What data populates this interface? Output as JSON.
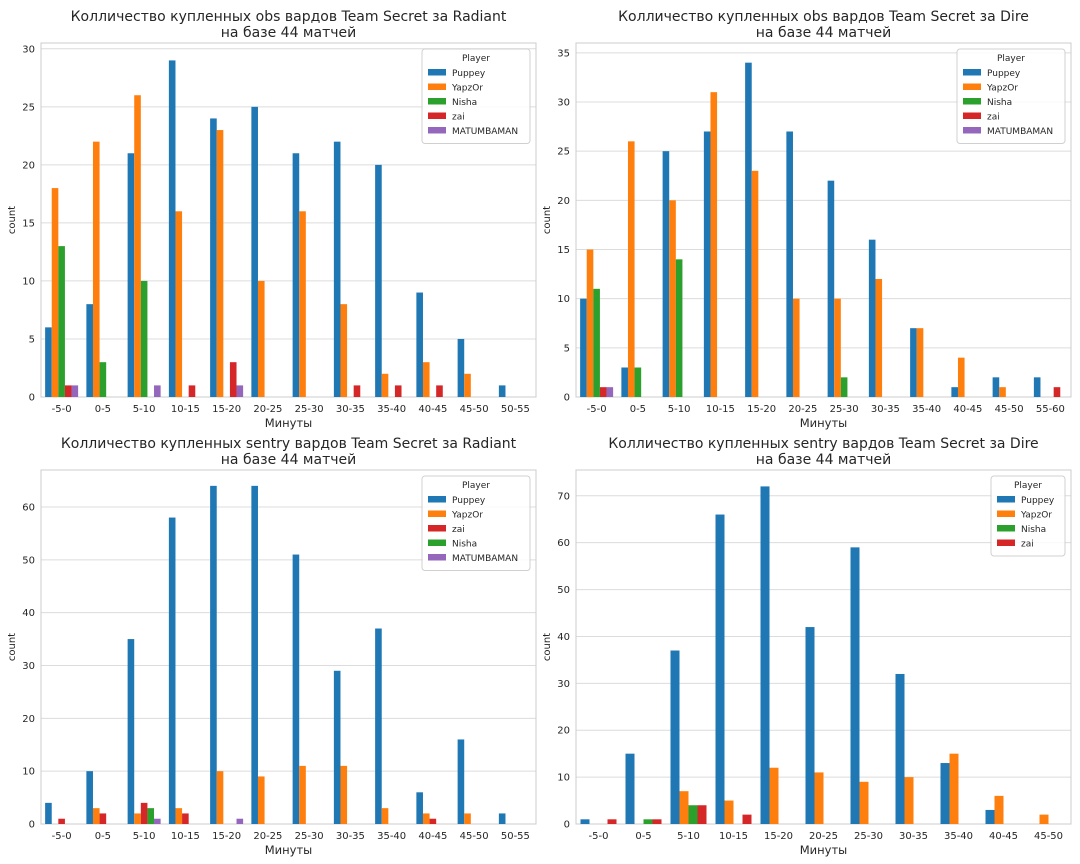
{
  "palette": {
    "Puppey": "#1f77b4",
    "YapzOr": "#ff7f0e",
    "Nisha": "#2ca02c",
    "zai": "#d62728",
    "MATUMBAMAN": "#9467bd"
  },
  "chart_data": [
    {
      "type": "bar",
      "title": "Колличество купленных obs вардов Team Secret за Radiant",
      "subtitle": "на базе 44 матчей",
      "xlabel": "Минуты",
      "ylabel": "count",
      "ylim": [
        0,
        30.5
      ],
      "yticks": [
        0,
        5,
        10,
        15,
        20,
        25,
        30
      ],
      "grid": true,
      "legend_title": "Player",
      "legend_position": "top-right",
      "categories": [
        "-5-0",
        "0-5",
        "5-10",
        "10-15",
        "15-20",
        "20-25",
        "25-30",
        "30-35",
        "35-40",
        "40-45",
        "45-50",
        "50-55"
      ],
      "series": [
        {
          "name": "Puppey",
          "values": [
            6,
            8,
            21,
            29,
            24,
            25,
            21,
            22,
            20,
            9,
            5,
            1
          ]
        },
        {
          "name": "YapzOr",
          "values": [
            18,
            22,
            26,
            16,
            23,
            10,
            16,
            8,
            2,
            3,
            2,
            0
          ]
        },
        {
          "name": "Nisha",
          "values": [
            13,
            3,
            10,
            0,
            0,
            0,
            0,
            0,
            0,
            0,
            0,
            0
          ]
        },
        {
          "name": "zai",
          "values": [
            1,
            0,
            0,
            1,
            3,
            0,
            0,
            1,
            1,
            1,
            0,
            0
          ]
        },
        {
          "name": "MATUMBAMAN",
          "values": [
            1,
            0,
            1,
            0,
            1,
            0,
            0,
            0,
            0,
            0,
            0,
            0
          ]
        }
      ]
    },
    {
      "type": "bar",
      "title": "Колличество купленных obs вардов Team Secret за Dire",
      "subtitle": "на базе 44 матчей",
      "xlabel": "Минуты",
      "ylabel": "count",
      "ylim": [
        0,
        36
      ],
      "yticks": [
        0,
        5,
        10,
        15,
        20,
        25,
        30,
        35
      ],
      "grid": true,
      "legend_title": "Player",
      "legend_position": "top-right",
      "categories": [
        "-5-0",
        "0-5",
        "5-10",
        "10-15",
        "15-20",
        "20-25",
        "25-30",
        "30-35",
        "35-40",
        "40-45",
        "45-50",
        "55-60"
      ],
      "series": [
        {
          "name": "Puppey",
          "values": [
            10,
            3,
            25,
            27,
            34,
            27,
            22,
            16,
            7,
            1,
            2,
            2
          ]
        },
        {
          "name": "YapzOr",
          "values": [
            15,
            26,
            20,
            31,
            23,
            10,
            10,
            12,
            7,
            4,
            1,
            0
          ]
        },
        {
          "name": "Nisha",
          "values": [
            11,
            3,
            14,
            0,
            0,
            0,
            2,
            0,
            0,
            0,
            0,
            0
          ]
        },
        {
          "name": "zai",
          "values": [
            1,
            0,
            0,
            0,
            0,
            0,
            0,
            0,
            0,
            0,
            0,
            1
          ]
        },
        {
          "name": "MATUMBAMAN",
          "values": [
            1,
            0,
            0,
            0,
            0,
            0,
            0,
            0,
            0,
            0,
            0,
            0
          ]
        }
      ]
    },
    {
      "type": "bar",
      "title": "Колличество купленных sentry вардов Team Secret за Radiant",
      "subtitle": "на базе 44 матчей",
      "xlabel": "Минуты",
      "ylabel": "count",
      "ylim": [
        0,
        67
      ],
      "yticks": [
        0,
        10,
        20,
        30,
        40,
        50,
        60
      ],
      "grid": true,
      "legend_title": "Player",
      "legend_position": "top-right",
      "categories": [
        "-5-0",
        "0-5",
        "5-10",
        "10-15",
        "15-20",
        "20-25",
        "25-30",
        "30-35",
        "35-40",
        "40-45",
        "45-50",
        "50-55"
      ],
      "series": [
        {
          "name": "Puppey",
          "values": [
            4,
            10,
            35,
            58,
            64,
            64,
            51,
            29,
            37,
            6,
            16,
            2
          ]
        },
        {
          "name": "YapzOr",
          "values": [
            0,
            3,
            2,
            3,
            10,
            9,
            11,
            11,
            3,
            2,
            2,
            0
          ]
        },
        {
          "name": "zai",
          "values": [
            1,
            2,
            4,
            2,
            0,
            0,
            0,
            0,
            0,
            1,
            0,
            0
          ]
        },
        {
          "name": "Nisha",
          "values": [
            0,
            0,
            3,
            0,
            0,
            0,
            0,
            0,
            0,
            0,
            0,
            0
          ]
        },
        {
          "name": "MATUMBAMAN",
          "values": [
            0,
            0,
            1,
            0,
            1,
            0,
            0,
            0,
            0,
            0,
            0,
            0
          ]
        }
      ]
    },
    {
      "type": "bar",
      "title": "Колличество купленных sentry вардов Team Secret за Dire",
      "subtitle": "на базе 44 матчей",
      "xlabel": "Минуты",
      "ylabel": "count",
      "ylim": [
        0,
        75.5
      ],
      "yticks": [
        0,
        10,
        20,
        30,
        40,
        50,
        60,
        70
      ],
      "grid": true,
      "legend_title": "Player",
      "legend_position": "top-right",
      "categories": [
        "-5-0",
        "0-5",
        "5-10",
        "10-15",
        "15-20",
        "20-25",
        "25-30",
        "30-35",
        "35-40",
        "40-45",
        "45-50"
      ],
      "series": [
        {
          "name": "Puppey",
          "values": [
            1,
            15,
            37,
            66,
            72,
            42,
            59,
            32,
            13,
            3,
            0
          ]
        },
        {
          "name": "YapzOr",
          "values": [
            0,
            0,
            7,
            5,
            12,
            11,
            9,
            10,
            15,
            6,
            2
          ]
        },
        {
          "name": "Nisha",
          "values": [
            0,
            1,
            4,
            0,
            0,
            0,
            0,
            0,
            0,
            0,
            0
          ]
        },
        {
          "name": "zai",
          "values": [
            1,
            1,
            4,
            2,
            0,
            0,
            0,
            0,
            0,
            0,
            0
          ]
        }
      ]
    }
  ]
}
